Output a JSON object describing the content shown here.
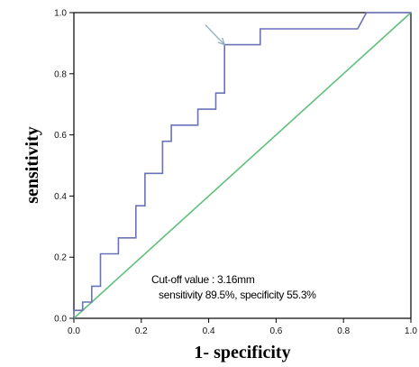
{
  "chart_data": {
    "type": "line",
    "title": "",
    "xlabel": "1- specificity",
    "ylabel": "sensitivity",
    "xlim": [
      0,
      1
    ],
    "ylim": [
      0,
      1
    ],
    "x_ticks": [
      "0.0",
      "0.2",
      "0.4",
      "0.6",
      "0.8",
      "1.0"
    ],
    "y_ticks": [
      "0.0",
      "0.2",
      "0.4",
      "0.6",
      "0.8",
      "1.0"
    ],
    "grid": false,
    "legend": "none",
    "series": [
      {
        "color": "#6a72b8",
        "points": [
          [
            0.0,
            0.0
          ],
          [
            0.0,
            0.026
          ],
          [
            0.026,
            0.026
          ],
          [
            0.026,
            0.053
          ],
          [
            0.053,
            0.053
          ],
          [
            0.053,
            0.105
          ],
          [
            0.079,
            0.105
          ],
          [
            0.079,
            0.211
          ],
          [
            0.132,
            0.211
          ],
          [
            0.132,
            0.263
          ],
          [
            0.184,
            0.263
          ],
          [
            0.184,
            0.368
          ],
          [
            0.211,
            0.368
          ],
          [
            0.211,
            0.474
          ],
          [
            0.263,
            0.474
          ],
          [
            0.263,
            0.579
          ],
          [
            0.289,
            0.579
          ],
          [
            0.289,
            0.632
          ],
          [
            0.368,
            0.632
          ],
          [
            0.368,
            0.684
          ],
          [
            0.421,
            0.684
          ],
          [
            0.421,
            0.737
          ],
          [
            0.447,
            0.737
          ],
          [
            0.447,
            0.895
          ],
          [
            0.553,
            0.895
          ],
          [
            0.553,
            0.947
          ],
          [
            0.842,
            0.947
          ],
          [
            0.868,
            1.0
          ],
          [
            1.0,
            1.0
          ]
        ]
      },
      {
        "color": "#5fbf7a",
        "points": [
          [
            0.0,
            0.0
          ],
          [
            1.0,
            1.0
          ]
        ]
      }
    ],
    "annotations": {
      "line1": "Cut-off value : 3.16mm",
      "line2": "sensitivity 89.5%, specificity 55.3%",
      "arrow_target": [
        0.447,
        0.895
      ],
      "arrow_from": [
        0.39,
        0.96
      ]
    }
  }
}
